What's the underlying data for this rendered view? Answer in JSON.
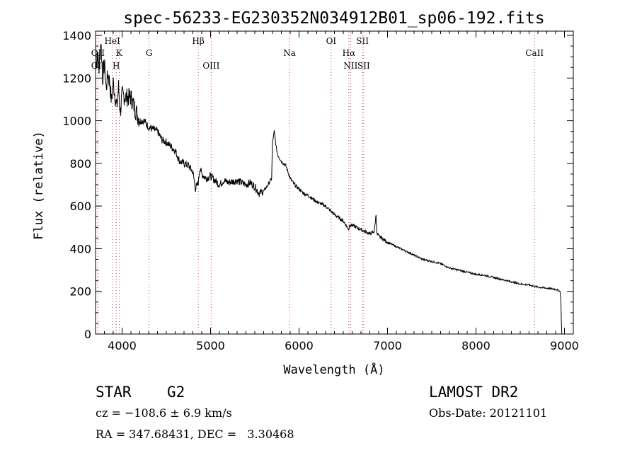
{
  "chart_data": {
    "type": "line",
    "title": "spec-56233-EG230352N034912B01_sp06-192.fits",
    "xlabel": "Wavelength (Å)",
    "ylabel": "Flux (relative)",
    "xlim": [
      3700,
      9100
    ],
    "ylim": [
      0,
      1420
    ],
    "xticks": [
      4000,
      5000,
      6000,
      7000,
      8000,
      9000
    ],
    "yticks": [
      0,
      200,
      400,
      600,
      800,
      1000,
      1200,
      1400
    ],
    "grid": false,
    "series": [
      {
        "x": [
          3700,
          3720,
          3740,
          3760,
          3780,
          3800,
          3820,
          3840,
          3860,
          3880,
          3900,
          3920,
          3940,
          3960,
          3980,
          4000,
          4050,
          4100,
          4150,
          4200,
          4250,
          4300,
          4350,
          4400,
          4450,
          4500,
          4550,
          4600,
          4650,
          4700,
          4750,
          4800,
          4830,
          4861,
          4880,
          4900,
          4950,
          5000,
          5050,
          5100,
          5150,
          5200,
          5300,
          5400,
          5450,
          5500,
          5550,
          5600,
          5650,
          5690,
          5700,
          5720,
          5740,
          5760,
          5800,
          5850,
          5900,
          5950,
          6000,
          6050,
          6100,
          6200,
          6300,
          6400,
          6500,
          6563,
          6570,
          6600,
          6700,
          6800,
          6850,
          6870,
          6880,
          6900,
          7000,
          7100,
          7200,
          7300,
          7400,
          7500,
          7600,
          7700,
          7800,
          7900,
          8000,
          8100,
          8200,
          8300,
          8400,
          8500,
          8600,
          8700,
          8800,
          8900,
          8950,
          8960,
          8965,
          8970
        ],
        "y": [
          1250,
          1320,
          1240,
          1380,
          1200,
          1270,
          1150,
          1220,
          1180,
          1090,
          1180,
          1120,
          1060,
          1160,
          1040,
          1120,
          1110,
          1110,
          1050,
          1000,
          1000,
          970,
          960,
          950,
          910,
          900,
          880,
          860,
          810,
          800,
          790,
          760,
          680,
          710,
          780,
          750,
          730,
          740,
          720,
          700,
          720,
          710,
          720,
          700,
          710,
          690,
          660,
          670,
          700,
          730,
          900,
          950,
          880,
          840,
          810,
          790,
          730,
          700,
          680,
          660,
          650,
          620,
          600,
          560,
          530,
          490,
          510,
          510,
          490,
          470,
          480,
          560,
          470,
          460,
          430,
          410,
          390,
          370,
          350,
          340,
          330,
          310,
          300,
          290,
          280,
          275,
          265,
          255,
          245,
          235,
          230,
          220,
          215,
          210,
          200,
          150,
          60,
          0
        ]
      }
    ],
    "lines": [
      {
        "label": "OII",
        "x": 3727,
        "row": 2
      },
      {
        "label": "OII",
        "x": 3727,
        "row": 3
      },
      {
        "label": "HeI",
        "x": 3889,
        "row": 1
      },
      {
        "label": "H",
        "x": 3934,
        "row": 3
      },
      {
        "label": "K",
        "x": 3968,
        "row": 2
      },
      {
        "label": "G",
        "x": 4305,
        "row": 2
      },
      {
        "label": "Hβ",
        "x": 4861,
        "row": 1
      },
      {
        "label": "OIII",
        "x": 5007,
        "row": 3
      },
      {
        "label": "Na",
        "x": 5893,
        "row": 2
      },
      {
        "label": "OI",
        "x": 6363,
        "row": 1
      },
      {
        "label": "Hα",
        "x": 6563,
        "row": 2
      },
      {
        "label": "NII",
        "x": 6583,
        "row": 3
      },
      {
        "label": "SII",
        "x": 6717,
        "row": 1
      },
      {
        "label": "SII",
        "x": 6731,
        "row": 3
      },
      {
        "label": "CaII",
        "x": 8662,
        "row": 2
      }
    ]
  },
  "info": {
    "object_class": "STAR",
    "subclass": "G2",
    "redshift": "cz = −108.6 ± 6.9 km/s",
    "coords": "RA = 347.68431, DEC =   3.30468",
    "survey": "LAMOST DR2",
    "obs_date": "Obs-Date: 20121101"
  },
  "colors": {
    "line_markers": "#e0404a",
    "spectrum": "#000000"
  }
}
